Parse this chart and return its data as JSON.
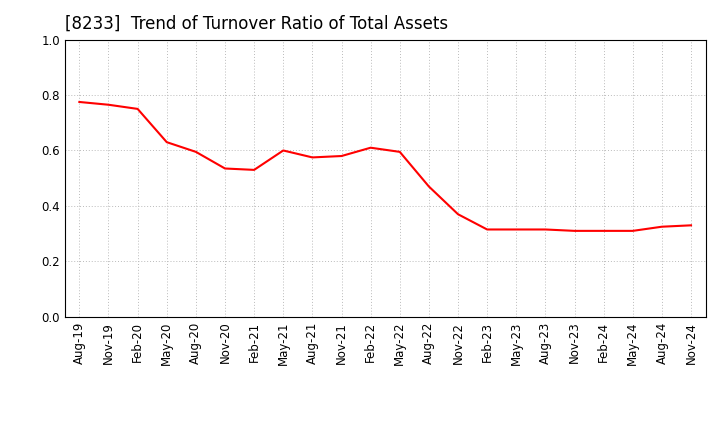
{
  "title": "[8233]  Trend of Turnover Ratio of Total Assets",
  "x_labels": [
    "Aug-19",
    "Nov-19",
    "Feb-20",
    "May-20",
    "Aug-20",
    "Nov-20",
    "Feb-21",
    "May-21",
    "Aug-21",
    "Nov-21",
    "Feb-22",
    "May-22",
    "Aug-22",
    "Nov-22",
    "Feb-23",
    "May-23",
    "Aug-23",
    "Nov-23",
    "Feb-24",
    "May-24",
    "Aug-24",
    "Nov-24"
  ],
  "y_values": [
    0.775,
    0.765,
    0.75,
    0.63,
    0.595,
    0.535,
    0.53,
    0.6,
    0.575,
    0.58,
    0.61,
    0.595,
    0.47,
    0.37,
    0.315,
    0.315,
    0.315,
    0.31,
    0.31,
    0.31,
    0.325,
    0.33
  ],
  "line_color": "#FF0000",
  "line_width": 1.5,
  "ylim": [
    0.0,
    1.0
  ],
  "yticks": [
    0.0,
    0.2,
    0.4,
    0.6,
    0.8,
    1.0
  ],
  "grid_color": "#bbbbbb",
  "background_color": "#ffffff",
  "title_fontsize": 12,
  "tick_fontsize": 8.5
}
